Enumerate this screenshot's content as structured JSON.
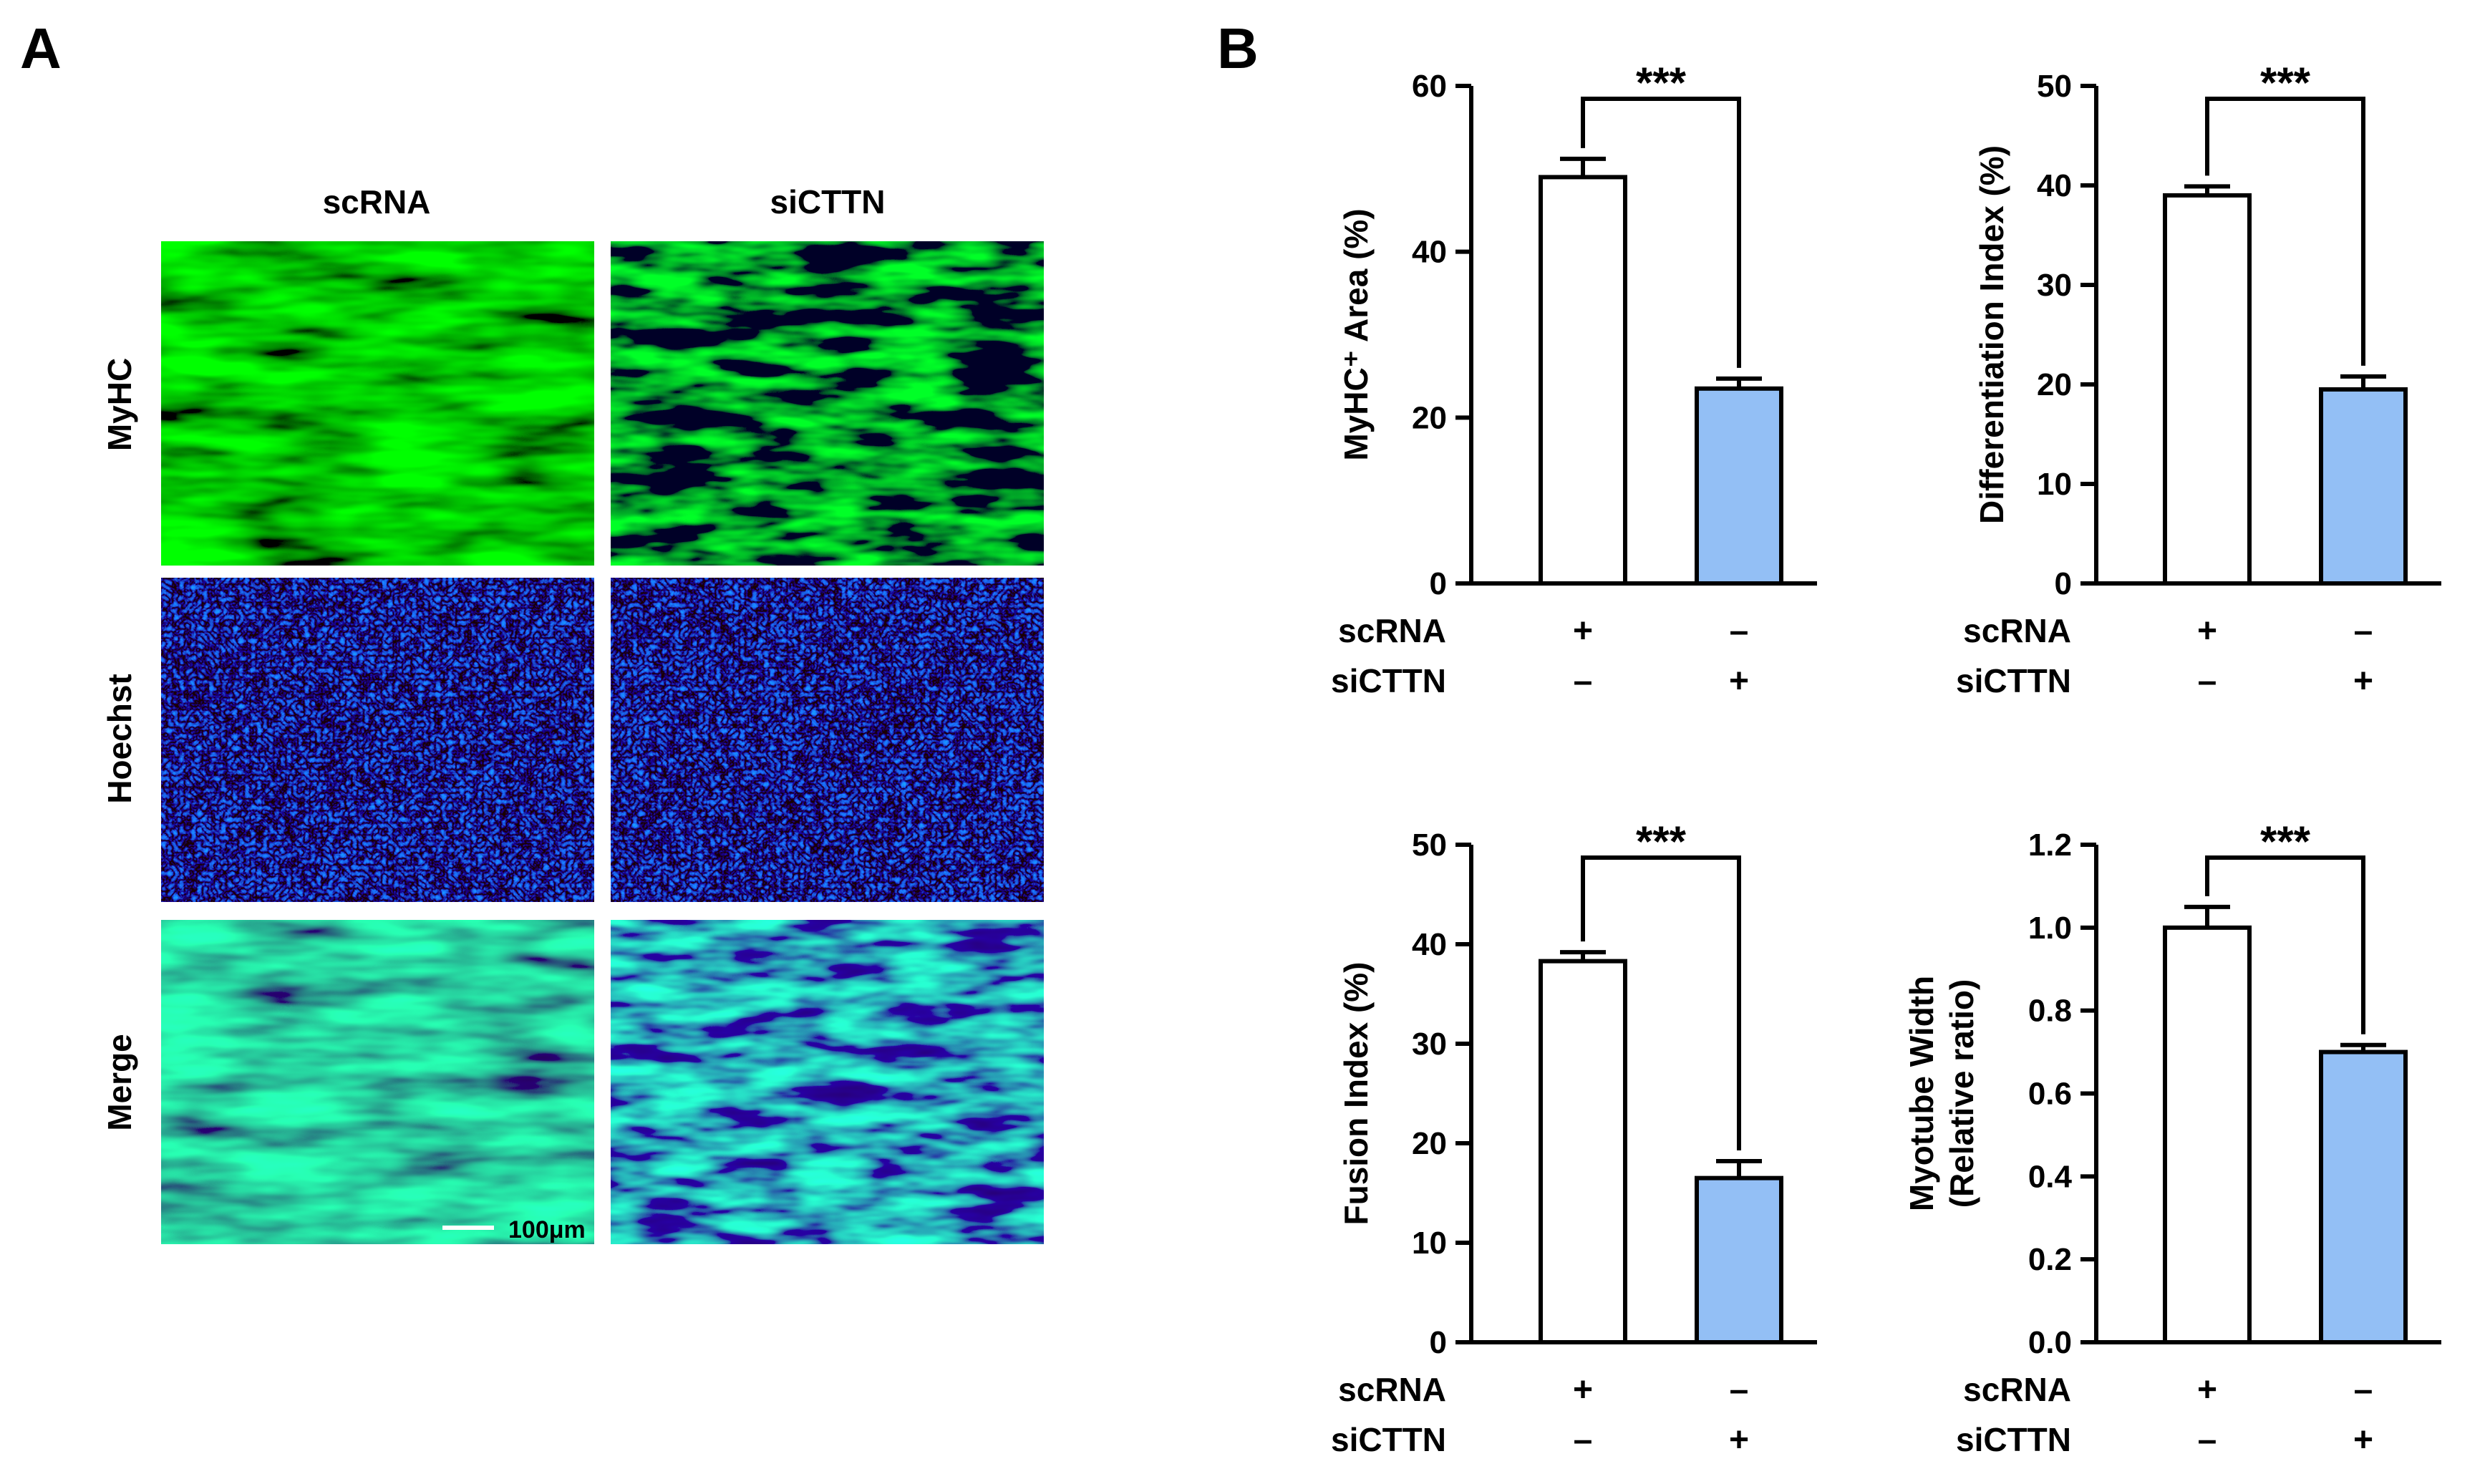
{
  "panels": {
    "a_label": "A",
    "b_label": "B"
  },
  "microscopy": {
    "columns": [
      "scRNA",
      "siCTTN"
    ],
    "rows": [
      {
        "label": "MyHC",
        "color": "#22c322"
      },
      {
        "label": "Hoechst",
        "color": "#1f7fe0"
      },
      {
        "label": "Merge",
        "color": "#000000"
      }
    ],
    "scale_bar": "100μm"
  },
  "colors": {
    "control_bar": "#ffffff",
    "treated_bar": "#93bff5",
    "axis": "#000000"
  },
  "condition_rows": [
    {
      "label": "scRNA",
      "marks": [
        "+",
        "–"
      ]
    },
    {
      "label": "siCTTN",
      "marks": [
        "–",
        "+"
      ]
    }
  ],
  "chart_data": [
    {
      "type": "bar",
      "ylabel": "MyHC⁺ Area (%)",
      "ylim": [
        0,
        60
      ],
      "yticks": [
        "0",
        "20",
        "40",
        "60"
      ],
      "categories": [
        "scRNA",
        "siCTTN"
      ],
      "values": [
        49,
        23.5
      ],
      "errors": [
        2.2,
        1.2
      ],
      "significance": "***"
    },
    {
      "type": "bar",
      "ylabel": "Differentiation Index (%)",
      "ylim": [
        0,
        50
      ],
      "yticks": [
        "0",
        "10",
        "20",
        "30",
        "40",
        "50"
      ],
      "categories": [
        "scRNA",
        "siCTTN"
      ],
      "values": [
        39,
        19.5
      ],
      "errors": [
        0.9,
        1.3
      ],
      "significance": "***"
    },
    {
      "type": "bar",
      "ylabel": "Fusion Index (%)",
      "ylim": [
        0,
        50
      ],
      "yticks": [
        "0",
        "10",
        "20",
        "30",
        "40",
        "50"
      ],
      "categories": [
        "scRNA",
        "siCTTN"
      ],
      "values": [
        38.3,
        16.5
      ],
      "errors": [
        0.9,
        1.7
      ],
      "significance": "***"
    },
    {
      "type": "bar",
      "ylabel": "Myotube Width",
      "ylabel2": "(Relative ratio)",
      "ylim": [
        0,
        1.2
      ],
      "yticks": [
        "0.0",
        "0.2",
        "0.4",
        "0.6",
        "0.8",
        "1.0",
        "1.2"
      ],
      "categories": [
        "scRNA",
        "siCTTN"
      ],
      "values": [
        1.0,
        0.7
      ],
      "errors": [
        0.05,
        0.017
      ],
      "significance": "***"
    }
  ]
}
